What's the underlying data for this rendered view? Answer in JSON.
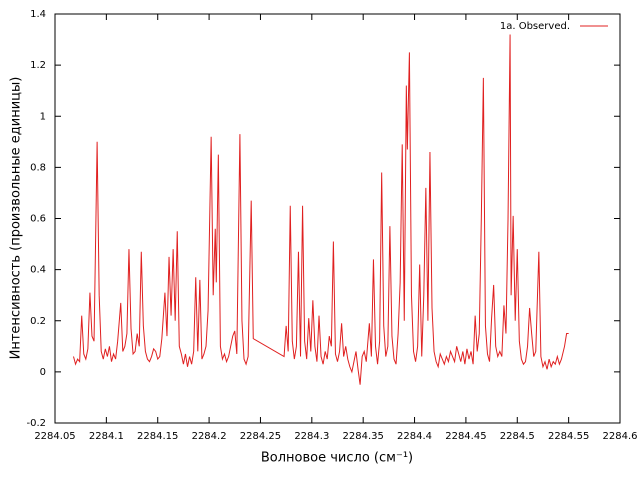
{
  "chart_data": {
    "type": "line",
    "xlabel": "Волновое число (см⁻¹)",
    "ylabel": "Интенсивность (произвольные единицы)",
    "xlim": [
      2284.05,
      2284.6
    ],
    "xticks": [
      2284.05,
      2284.1,
      2284.15,
      2284.2,
      2284.25,
      2284.3,
      2284.35,
      2284.4,
      2284.45,
      2284.5,
      2284.55,
      2284.6
    ],
    "ylim": [
      -0.2,
      1.4
    ],
    "yticks": [
      -0.2,
      0,
      0.2,
      0.4,
      0.6,
      0.8,
      1,
      1.2,
      1.4
    ],
    "grid": false,
    "legend": "top-right",
    "x": [
      2284.068,
      2284.07,
      2284.072,
      2284.074,
      2284.076,
      2284.078,
      2284.08,
      2284.082,
      2284.084,
      2284.086,
      2284.088,
      2284.091,
      2284.093,
      2284.095,
      2284.097,
      2284.099,
      2284.101,
      2284.103,
      2284.105,
      2284.107,
      2284.109,
      2284.111,
      2284.114,
      2284.116,
      2284.118,
      2284.12,
      2284.122,
      2284.124,
      2284.126,
      2284.128,
      2284.13,
      2284.132,
      2284.134,
      2284.136,
      2284.138,
      2284.14,
      2284.142,
      2284.144,
      2284.146,
      2284.148,
      2284.15,
      2284.152,
      2284.154,
      2284.157,
      2284.159,
      2284.161,
      2284.163,
      2284.165,
      2284.167,
      2284.169,
      2284.171,
      2284.173,
      2284.175,
      2284.177,
      2284.179,
      2284.181,
      2284.183,
      2284.185,
      2284.187,
      2284.189,
      2284.191,
      2284.193,
      2284.195,
      2284.197,
      2284.199,
      2284.202,
      2284.204,
      2284.206,
      2284.207,
      2284.209,
      2284.211,
      2284.213,
      2284.215,
      2284.217,
      2284.219,
      2284.221,
      2284.223,
      2284.225,
      2284.227,
      2284.23,
      2284.232,
      2284.234,
      2284.236,
      2284.238,
      2284.241,
      2284.243,
      2284.273,
      2284.275,
      2284.277,
      2284.279,
      2284.281,
      2284.283,
      2284.285,
      2284.287,
      2284.289,
      2284.291,
      2284.293,
      2284.295,
      2284.297,
      2284.299,
      2284.301,
      2284.303,
      2284.305,
      2284.307,
      2284.309,
      2284.311,
      2284.313,
      2284.315,
      2284.317,
      2284.319,
      2284.321,
      2284.323,
      2284.325,
      2284.327,
      2284.329,
      2284.331,
      2284.333,
      2284.335,
      2284.337,
      2284.339,
      2284.341,
      2284.343,
      2284.345,
      2284.347,
      2284.349,
      2284.351,
      2284.353,
      2284.356,
      2284.358,
      2284.36,
      2284.362,
      2284.364,
      2284.366,
      2284.368,
      2284.37,
      2284.372,
      2284.374,
      2284.376,
      2284.378,
      2284.38,
      2284.382,
      2284.384,
      2284.386,
      2284.388,
      2284.39,
      2284.392,
      2284.393,
      2284.395,
      2284.397,
      2284.399,
      2284.401,
      2284.403,
      2284.405,
      2284.407,
      2284.409,
      2284.411,
      2284.413,
      2284.415,
      2284.417,
      2284.419,
      2284.421,
      2284.423,
      2284.425,
      2284.427,
      2284.429,
      2284.431,
      2284.433,
      2284.435,
      2284.437,
      2284.439,
      2284.441,
      2284.443,
      2284.445,
      2284.447,
      2284.449,
      2284.451,
      2284.453,
      2284.455,
      2284.457,
      2284.459,
      2284.461,
      2284.463,
      2284.465,
      2284.467,
      2284.469,
      2284.471,
      2284.473,
      2284.475,
      2284.477,
      2284.479,
      2284.481,
      2284.483,
      2284.485,
      2284.487,
      2284.489,
      2284.491,
      2284.493,
      2284.494,
      2284.496,
      2284.498,
      2284.5,
      2284.502,
      2284.504,
      2284.506,
      2284.508,
      2284.51,
      2284.512,
      2284.514,
      2284.516,
      2284.518,
      2284.521,
      2284.523,
      2284.525,
      2284.527,
      2284.529,
      2284.531,
      2284.533,
      2284.535,
      2284.537,
      2284.539,
      2284.541,
      2284.543,
      2284.546,
      2284.548,
      2284.55
    ],
    "series": [
      {
        "name": "1a. Observed.",
        "color": "#e02020",
        "values": [
          0.06,
          0.03,
          0.05,
          0.04,
          0.22,
          0.07,
          0.05,
          0.09,
          0.31,
          0.14,
          0.12,
          0.9,
          0.3,
          0.08,
          0.05,
          0.09,
          0.06,
          0.1,
          0.04,
          0.07,
          0.05,
          0.12,
          0.27,
          0.08,
          0.1,
          0.15,
          0.48,
          0.17,
          0.07,
          0.08,
          0.15,
          0.1,
          0.47,
          0.18,
          0.08,
          0.05,
          0.04,
          0.06,
          0.09,
          0.08,
          0.05,
          0.06,
          0.13,
          0.31,
          0.14,
          0.45,
          0.22,
          0.48,
          0.2,
          0.55,
          0.1,
          0.07,
          0.03,
          0.07,
          0.02,
          0.06,
          0.03,
          0.08,
          0.37,
          0.08,
          0.36,
          0.05,
          0.07,
          0.1,
          0.24,
          0.92,
          0.3,
          0.56,
          0.35,
          0.85,
          0.1,
          0.05,
          0.07,
          0.04,
          0.06,
          0.1,
          0.14,
          0.16,
          0.07,
          0.93,
          0.2,
          0.05,
          0.03,
          0.06,
          0.67,
          0.13,
          0.06,
          0.18,
          0.08,
          0.65,
          0.12,
          0.05,
          0.1,
          0.47,
          0.06,
          0.65,
          0.12,
          0.05,
          0.21,
          0.08,
          0.28,
          0.1,
          0.04,
          0.22,
          0.06,
          0.03,
          0.08,
          0.05,
          0.14,
          0.1,
          0.51,
          0.07,
          0.04,
          0.08,
          0.19,
          0.06,
          0.1,
          0.05,
          0.02,
          0.0,
          0.04,
          0.08,
          0.01,
          -0.05,
          0.06,
          0.08,
          0.04,
          0.19,
          0.06,
          0.44,
          0.1,
          0.03,
          0.12,
          0.78,
          0.18,
          0.06,
          0.1,
          0.57,
          0.14,
          0.05,
          0.03,
          0.15,
          0.35,
          0.89,
          0.2,
          1.12,
          0.87,
          1.25,
          0.3,
          0.08,
          0.04,
          0.1,
          0.42,
          0.06,
          0.3,
          0.72,
          0.2,
          0.86,
          0.25,
          0.08,
          0.04,
          0.02,
          0.07,
          0.05,
          0.03,
          0.06,
          0.04,
          0.08,
          0.06,
          0.04,
          0.1,
          0.07,
          0.04,
          0.08,
          0.03,
          0.09,
          0.05,
          0.08,
          0.03,
          0.22,
          0.08,
          0.15,
          0.6,
          1.15,
          0.18,
          0.07,
          0.04,
          0.21,
          0.34,
          0.1,
          0.06,
          0.08,
          0.06,
          0.26,
          0.15,
          0.6,
          1.32,
          0.3,
          0.61,
          0.2,
          0.48,
          0.12,
          0.05,
          0.03,
          0.04,
          0.1,
          0.25,
          0.15,
          0.06,
          0.08,
          0.47,
          0.06,
          0.02,
          0.04,
          0.01,
          0.05,
          0.02,
          0.04,
          0.03,
          0.06,
          0.03,
          0.05,
          0.1,
          0.15,
          0.15
        ]
      }
    ]
  }
}
